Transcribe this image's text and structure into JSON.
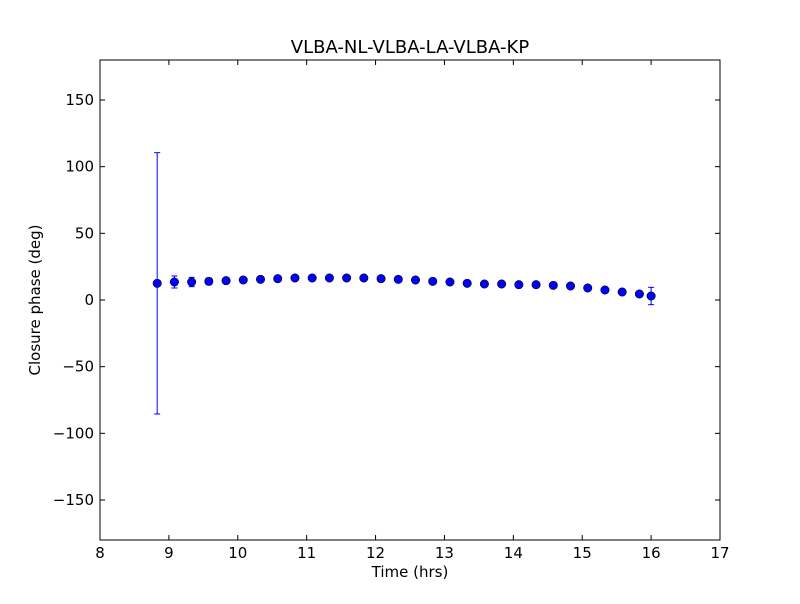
{
  "chart_data": {
    "type": "scatter",
    "title": "VLBA-NL-VLBA-LA-VLBA-KP",
    "xlabel": "Time (hrs)",
    "ylabel": "Closure phase (deg)",
    "xlim": [
      8,
      17
    ],
    "ylim": [
      -180,
      180
    ],
    "x_ticks": [
      8,
      9,
      10,
      11,
      12,
      13,
      14,
      15,
      16,
      17
    ],
    "y_ticks": [
      -150,
      -100,
      -50,
      0,
      50,
      100,
      150
    ],
    "x_tick_labels": [
      "8",
      "9",
      "10",
      "11",
      "12",
      "13",
      "14",
      "15",
      "16",
      "17"
    ],
    "y_tick_labels": [
      "−150",
      "−100",
      "−50",
      "0",
      "50",
      "100",
      "150"
    ],
    "grid": false,
    "marker_color": "#0000ff",
    "errorbar_color": "#0000ff",
    "series": [
      {
        "points": [
          {
            "x": 8.83,
            "y": 12.5,
            "err": 98
          },
          {
            "x": 9.08,
            "y": 13.5,
            "err": 4.5
          },
          {
            "x": 9.33,
            "y": 13.5,
            "err": 3.5
          },
          {
            "x": 9.58,
            "y": 14.0,
            "err": 2.5
          },
          {
            "x": 9.83,
            "y": 14.5,
            "err": 2.0
          },
          {
            "x": 10.08,
            "y": 15.0,
            "err": 1.5
          },
          {
            "x": 10.33,
            "y": 15.5,
            "err": 1.5
          },
          {
            "x": 10.58,
            "y": 16.0,
            "err": 1.5
          },
          {
            "x": 10.83,
            "y": 16.5,
            "err": 1.5
          },
          {
            "x": 11.08,
            "y": 16.5,
            "err": 1.5
          },
          {
            "x": 11.33,
            "y": 16.5,
            "err": 1.5
          },
          {
            "x": 11.58,
            "y": 16.5,
            "err": 1.5
          },
          {
            "x": 11.83,
            "y": 16.5,
            "err": 1.5
          },
          {
            "x": 12.08,
            "y": 16.0,
            "err": 1.5
          },
          {
            "x": 12.33,
            "y": 15.5,
            "err": 1.5
          },
          {
            "x": 12.58,
            "y": 15.0,
            "err": 1.5
          },
          {
            "x": 12.83,
            "y": 14.0,
            "err": 1.5
          },
          {
            "x": 13.08,
            "y": 13.5,
            "err": 1.5
          },
          {
            "x": 13.33,
            "y": 12.5,
            "err": 1.5
          },
          {
            "x": 13.58,
            "y": 12.0,
            "err": 1.5
          },
          {
            "x": 13.83,
            "y": 12.0,
            "err": 1.5
          },
          {
            "x": 14.08,
            "y": 11.5,
            "err": 1.5
          },
          {
            "x": 14.33,
            "y": 11.5,
            "err": 1.5
          },
          {
            "x": 14.58,
            "y": 11.0,
            "err": 1.5
          },
          {
            "x": 14.83,
            "y": 10.5,
            "err": 1.5
          },
          {
            "x": 15.08,
            "y": 9.0,
            "err": 1.5
          },
          {
            "x": 15.33,
            "y": 7.5,
            "err": 1.5
          },
          {
            "x": 15.58,
            "y": 6.0,
            "err": 1.5
          },
          {
            "x": 15.83,
            "y": 4.5,
            "err": 1.5
          },
          {
            "x": 16.0,
            "y": 3.0,
            "err": 6.5
          }
        ]
      }
    ]
  }
}
